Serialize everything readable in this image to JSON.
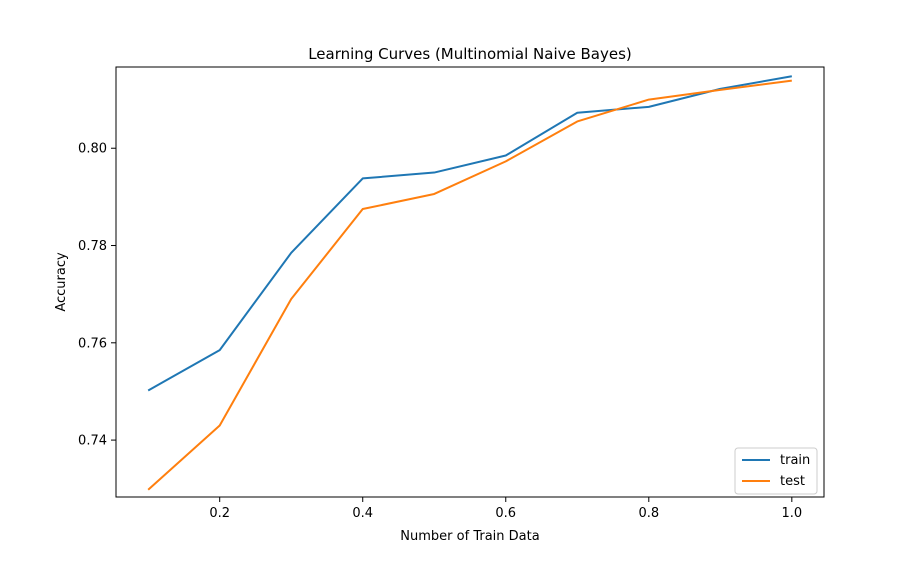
{
  "chart_data": {
    "type": "line",
    "title": "Learning Curves (Multinomial Naive Bayes)",
    "xlabel": "Number of Train Data",
    "ylabel": "Accuracy",
    "x": [
      0.1,
      0.2,
      0.3,
      0.4,
      0.5,
      0.6,
      0.7,
      0.8,
      0.9,
      1.0
    ],
    "series": [
      {
        "name": "train",
        "color": "#1f77b4",
        "values": [
          0.7502,
          0.7585,
          0.7785,
          0.7938,
          0.795,
          0.7985,
          0.8073,
          0.8085,
          0.8122,
          0.8148
        ]
      },
      {
        "name": "test",
        "color": "#ff7f0e",
        "values": [
          0.7298,
          0.743,
          0.769,
          0.7875,
          0.7906,
          0.7973,
          0.8055,
          0.81,
          0.812,
          0.8139
        ]
      }
    ],
    "xlim": [
      0.055,
      1.045
    ],
    "ylim": [
      0.7283,
      0.8167
    ],
    "xticks": [
      0.2,
      0.4,
      0.6,
      0.8,
      1.0
    ],
    "xtick_labels": [
      "0.2",
      "0.4",
      "0.6",
      "0.8",
      "1.0"
    ],
    "yticks": [
      0.74,
      0.76,
      0.78,
      0.8
    ],
    "ytick_labels": [
      "0.74",
      "0.76",
      "0.78",
      "0.80"
    ],
    "grid": false,
    "legend_position": "bottom-right"
  }
}
